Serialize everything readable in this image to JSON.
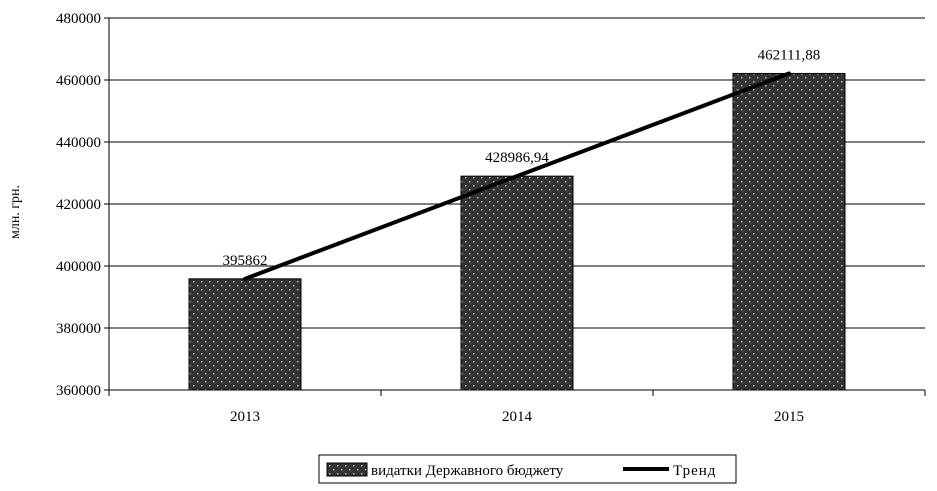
{
  "chart_data": {
    "type": "bar",
    "title": "",
    "xlabel": "",
    "ylabel": "млн. грн.",
    "categories": [
      "2013",
      "2014",
      "2015"
    ],
    "series": [
      {
        "name": "видатки Державного бюджету",
        "kind": "bar",
        "values": [
          395862,
          428986.94,
          462111.88
        ],
        "data_labels": [
          "395862",
          "428986,94",
          "462111,88"
        ],
        "color": "#333333",
        "pattern": "dotted"
      },
      {
        "name": "Тренд",
        "kind": "line",
        "values": [
          395862,
          428986.94,
          462111.88
        ],
        "color": "#000000"
      }
    ],
    "ylim": [
      360000,
      480000
    ],
    "yticks": [
      360000,
      380000,
      400000,
      420000,
      440000,
      460000,
      480000
    ],
    "ytick_labels": [
      "360000",
      "380000",
      "400000",
      "420000",
      "440000",
      "460000",
      "480000"
    ],
    "grid": true,
    "legend_position": "bottom"
  }
}
